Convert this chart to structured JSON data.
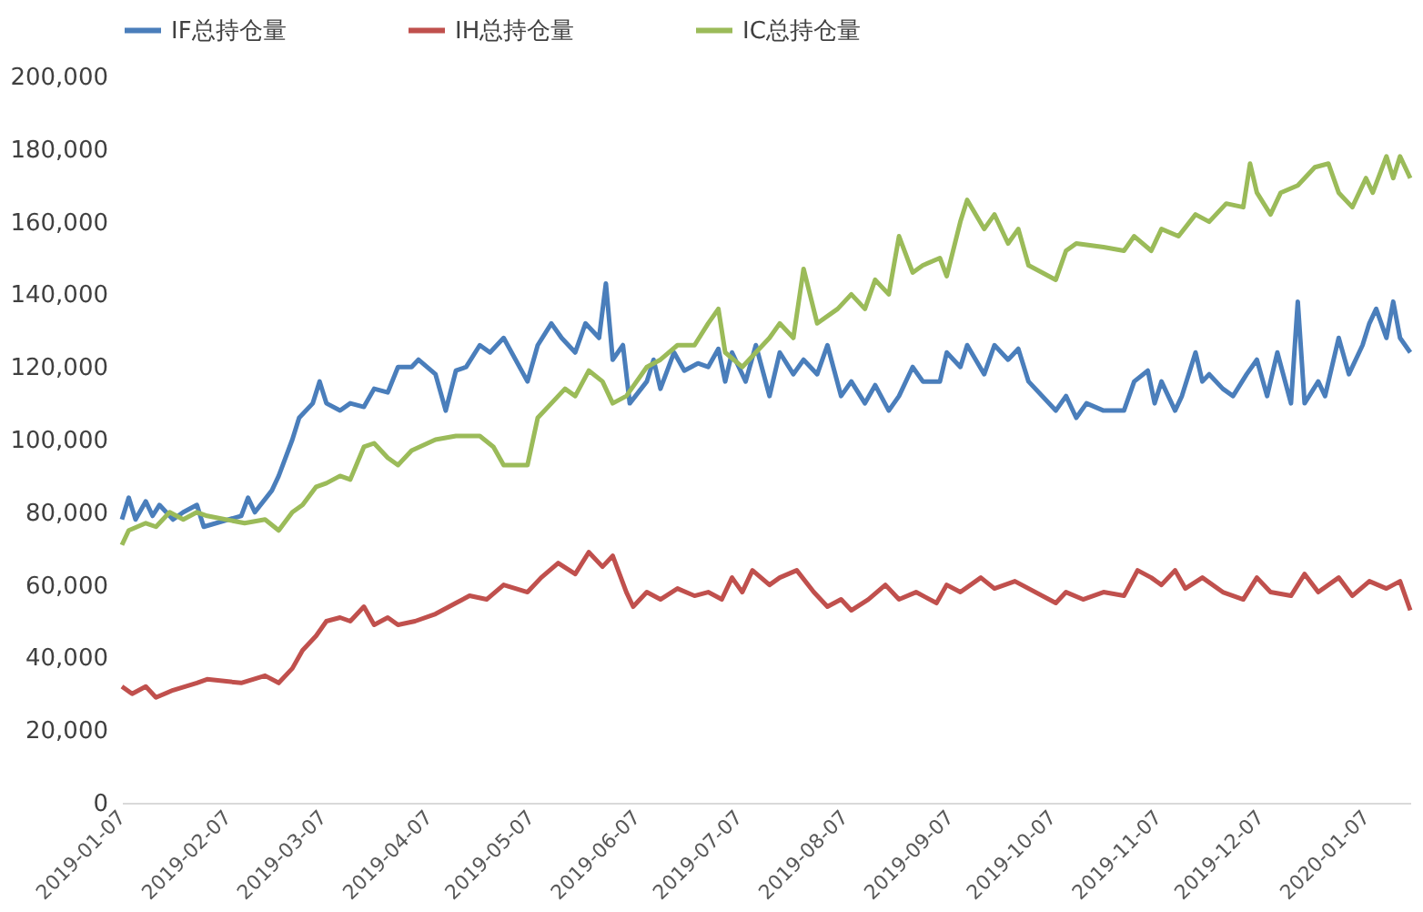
{
  "chart_data": {
    "type": "line",
    "xlim": [
      "2019-01-07",
      "2020-01-20"
    ],
    "xticks": [
      "2019-01-07",
      "2019-02-07",
      "2019-03-07",
      "2019-04-07",
      "2019-05-07",
      "2019-06-07",
      "2019-07-07",
      "2019-08-07",
      "2019-09-07",
      "2019-10-07",
      "2019-11-07",
      "2019-12-07",
      "2020-01-07"
    ],
    "ylim": [
      0,
      200000
    ],
    "yticks": [
      0,
      {
        "value": 20000,
        "label": "20,000"
      },
      {
        "value": 40000,
        "label": "40,000"
      },
      {
        "value": 60000,
        "label": "60,000"
      },
      {
        "value": 80000,
        "label": "80,000"
      },
      {
        "value": 100000,
        "label": "100,000"
      },
      {
        "value": 120000,
        "label": "120,000"
      },
      {
        "value": 140000,
        "label": "140,000"
      },
      {
        "value": 160000,
        "label": "160,000"
      },
      {
        "value": 180000,
        "label": "180,000"
      },
      {
        "value": 200000,
        "label": "200,000"
      }
    ],
    "grid": false,
    "legend": "top",
    "marker": "none",
    "line_style": "solid",
    "series": [
      {
        "name": "IF总持仓量",
        "color": "#4a7ebb",
        "x": [
          "2019-01-07",
          "2019-01-09",
          "2019-01-11",
          "2019-01-14",
          "2019-01-16",
          "2019-01-18",
          "2019-01-22",
          "2019-01-25",
          "2019-01-29",
          "2019-01-31",
          "2019-02-11",
          "2019-02-13",
          "2019-02-15",
          "2019-02-20",
          "2019-02-22",
          "2019-02-26",
          "2019-02-28",
          "2019-03-04",
          "2019-03-06",
          "2019-03-08",
          "2019-03-12",
          "2019-03-15",
          "2019-03-19",
          "2019-03-22",
          "2019-03-26",
          "2019-03-29",
          "2019-04-02",
          "2019-04-04",
          "2019-04-09",
          "2019-04-12",
          "2019-04-15",
          "2019-04-18",
          "2019-04-22",
          "2019-04-25",
          "2019-04-29",
          "2019-05-06",
          "2019-05-09",
          "2019-05-13",
          "2019-05-16",
          "2019-05-20",
          "2019-05-23",
          "2019-05-27",
          "2019-05-29",
          "2019-05-31",
          "2019-06-03",
          "2019-06-05",
          "2019-06-10",
          "2019-06-12",
          "2019-06-14",
          "2019-06-18",
          "2019-06-21",
          "2019-06-25",
          "2019-06-28",
          "2019-07-01",
          "2019-07-03",
          "2019-07-05",
          "2019-07-09",
          "2019-07-12",
          "2019-07-16",
          "2019-07-19",
          "2019-07-23",
          "2019-07-26",
          "2019-07-30",
          "2019-08-02",
          "2019-08-06",
          "2019-08-09",
          "2019-08-13",
          "2019-08-16",
          "2019-08-20",
          "2019-08-23",
          "2019-08-27",
          "2019-08-30",
          "2019-09-04",
          "2019-09-06",
          "2019-09-10",
          "2019-09-12",
          "2019-09-17",
          "2019-09-20",
          "2019-09-24",
          "2019-09-27",
          "2019-09-30",
          "2019-10-08",
          "2019-10-11",
          "2019-10-14",
          "2019-10-17",
          "2019-10-22",
          "2019-10-28",
          "2019-10-31",
          "2019-11-04",
          "2019-11-06",
          "2019-11-08",
          "2019-11-12",
          "2019-11-14",
          "2019-11-18",
          "2019-11-20",
          "2019-11-22",
          "2019-11-26",
          "2019-11-29",
          "2019-12-03",
          "2019-12-06",
          "2019-12-09",
          "2019-12-12",
          "2019-12-16",
          "2019-12-18",
          "2019-12-20",
          "2019-12-24",
          "2019-12-26",
          "2019-12-30",
          "2020-01-02",
          "2020-01-06",
          "2020-01-08",
          "2020-01-10",
          "2020-01-13",
          "2020-01-15",
          "2020-01-17",
          "2020-01-20"
        ],
        "values": [
          78000,
          84000,
          78000,
          83000,
          79000,
          82000,
          78000,
          80000,
          82000,
          76000,
          79000,
          84000,
          80000,
          86000,
          90000,
          100000,
          106000,
          110000,
          116000,
          110000,
          108000,
          110000,
          109000,
          114000,
          113000,
          120000,
          120000,
          122000,
          118000,
          108000,
          119000,
          120000,
          126000,
          124000,
          128000,
          116000,
          126000,
          132000,
          128000,
          124000,
          132000,
          128000,
          143000,
          122000,
          126000,
          110000,
          116000,
          122000,
          114000,
          124000,
          119000,
          121000,
          120000,
          125000,
          116000,
          124000,
          116000,
          126000,
          112000,
          124000,
          118000,
          122000,
          118000,
          126000,
          112000,
          116000,
          110000,
          115000,
          108000,
          112000,
          120000,
          116000,
          116000,
          124000,
          120000,
          126000,
          118000,
          126000,
          122000,
          125000,
          116000,
          108000,
          112000,
          106000,
          110000,
          108000,
          108000,
          116000,
          119000,
          110000,
          116000,
          108000,
          112000,
          124000,
          116000,
          118000,
          114000,
          112000,
          118000,
          122000,
          112000,
          124000,
          110000,
          138000,
          110000,
          116000,
          112000,
          128000,
          118000,
          126000,
          132000,
          136000,
          128000,
          138000,
          128000,
          124000
        ]
      },
      {
        "name": "IH总持仓量",
        "color": "#c0504d",
        "x": [
          "2019-01-07",
          "2019-01-10",
          "2019-01-14",
          "2019-01-17",
          "2019-01-22",
          "2019-01-29",
          "2019-02-01",
          "2019-02-11",
          "2019-02-18",
          "2019-02-22",
          "2019-02-26",
          "2019-03-01",
          "2019-03-05",
          "2019-03-08",
          "2019-03-12",
          "2019-03-15",
          "2019-03-19",
          "2019-03-22",
          "2019-03-26",
          "2019-03-29",
          "2019-04-03",
          "2019-04-09",
          "2019-04-15",
          "2019-04-19",
          "2019-04-24",
          "2019-04-29",
          "2019-05-06",
          "2019-05-10",
          "2019-05-15",
          "2019-05-20",
          "2019-05-24",
          "2019-05-28",
          "2019-05-31",
          "2019-06-04",
          "2019-06-06",
          "2019-06-10",
          "2019-06-14",
          "2019-06-19",
          "2019-06-24",
          "2019-06-28",
          "2019-07-02",
          "2019-07-05",
          "2019-07-08",
          "2019-07-11",
          "2019-07-16",
          "2019-07-19",
          "2019-07-24",
          "2019-07-29",
          "2019-08-02",
          "2019-08-06",
          "2019-08-09",
          "2019-08-14",
          "2019-08-19",
          "2019-08-23",
          "2019-08-28",
          "2019-09-03",
          "2019-09-06",
          "2019-09-10",
          "2019-09-16",
          "2019-09-20",
          "2019-09-26",
          "2019-10-08",
          "2019-10-11",
          "2019-10-16",
          "2019-10-22",
          "2019-10-28",
          "2019-11-01",
          "2019-11-05",
          "2019-11-08",
          "2019-11-12",
          "2019-11-15",
          "2019-11-20",
          "2019-11-26",
          "2019-12-02",
          "2019-12-06",
          "2019-12-10",
          "2019-12-16",
          "2019-12-20",
          "2019-12-24",
          "2019-12-30",
          "2020-01-03",
          "2020-01-08",
          "2020-01-13",
          "2020-01-17",
          "2020-01-20"
        ],
        "values": [
          32000,
          30000,
          32000,
          29000,
          31000,
          33000,
          34000,
          33000,
          35000,
          33000,
          37000,
          42000,
          46000,
          50000,
          51000,
          50000,
          54000,
          49000,
          51000,
          49000,
          50000,
          52000,
          55000,
          57000,
          56000,
          60000,
          58000,
          62000,
          66000,
          63000,
          69000,
          65000,
          68000,
          58000,
          54000,
          58000,
          56000,
          59000,
          57000,
          58000,
          56000,
          62000,
          58000,
          64000,
          60000,
          62000,
          64000,
          58000,
          54000,
          56000,
          53000,
          56000,
          60000,
          56000,
          58000,
          55000,
          60000,
          58000,
          62000,
          59000,
          61000,
          55000,
          58000,
          56000,
          58000,
          57000,
          64000,
          62000,
          60000,
          64000,
          59000,
          62000,
          58000,
          56000,
          62000,
          58000,
          57000,
          63000,
          58000,
          62000,
          57000,
          61000,
          59000,
          61000,
          53000
        ]
      },
      {
        "name": "IC总持仓量",
        "color": "#9bbb59",
        "x": [
          "2019-01-07",
          "2019-01-09",
          "2019-01-14",
          "2019-01-17",
          "2019-01-21",
          "2019-01-25",
          "2019-01-29",
          "2019-02-01",
          "2019-02-12",
          "2019-02-18",
          "2019-02-22",
          "2019-02-26",
          "2019-03-01",
          "2019-03-05",
          "2019-03-08",
          "2019-03-12",
          "2019-03-15",
          "2019-03-19",
          "2019-03-22",
          "2019-03-26",
          "2019-03-29",
          "2019-04-02",
          "2019-04-09",
          "2019-04-15",
          "2019-04-22",
          "2019-04-26",
          "2019-04-29",
          "2019-05-06",
          "2019-05-09",
          "2019-05-13",
          "2019-05-17",
          "2019-05-20",
          "2019-05-24",
          "2019-05-28",
          "2019-05-31",
          "2019-06-04",
          "2019-06-10",
          "2019-06-14",
          "2019-06-19",
          "2019-06-24",
          "2019-06-28",
          "2019-07-01",
          "2019-07-03",
          "2019-07-08",
          "2019-07-12",
          "2019-07-16",
          "2019-07-19",
          "2019-07-23",
          "2019-07-26",
          "2019-07-30",
          "2019-08-05",
          "2019-08-09",
          "2019-08-13",
          "2019-08-16",
          "2019-08-20",
          "2019-08-23",
          "2019-08-27",
          "2019-08-30",
          "2019-09-04",
          "2019-09-06",
          "2019-09-10",
          "2019-09-12",
          "2019-09-17",
          "2019-09-20",
          "2019-09-24",
          "2019-09-27",
          "2019-09-30",
          "2019-10-08",
          "2019-10-11",
          "2019-10-14",
          "2019-10-22",
          "2019-10-28",
          "2019-10-31",
          "2019-11-05",
          "2019-11-08",
          "2019-11-13",
          "2019-11-18",
          "2019-11-22",
          "2019-11-27",
          "2019-12-02",
          "2019-12-04",
          "2019-12-06",
          "2019-12-10",
          "2019-12-13",
          "2019-12-18",
          "2019-12-23",
          "2019-12-27",
          "2019-12-30",
          "2020-01-03",
          "2020-01-07",
          "2020-01-09",
          "2020-01-13",
          "2020-01-15",
          "2020-01-17",
          "2020-01-20"
        ],
        "values": [
          71000,
          75000,
          77000,
          76000,
          80000,
          78000,
          80000,
          79000,
          77000,
          78000,
          75000,
          80000,
          82000,
          87000,
          88000,
          90000,
          89000,
          98000,
          99000,
          95000,
          93000,
          97000,
          100000,
          101000,
          101000,
          98000,
          93000,
          93000,
          106000,
          110000,
          114000,
          112000,
          119000,
          116000,
          110000,
          112000,
          120000,
          122000,
          126000,
          126000,
          132000,
          136000,
          124000,
          120000,
          124000,
          128000,
          132000,
          128000,
          147000,
          132000,
          136000,
          140000,
          136000,
          144000,
          140000,
          156000,
          146000,
          148000,
          150000,
          145000,
          160000,
          166000,
          158000,
          162000,
          154000,
          158000,
          148000,
          144000,
          152000,
          154000,
          153000,
          152000,
          156000,
          152000,
          158000,
          156000,
          162000,
          160000,
          165000,
          164000,
          176000,
          168000,
          162000,
          168000,
          170000,
          175000,
          176000,
          168000,
          164000,
          172000,
          168000,
          178000,
          172000,
          178000,
          172000
        ]
      }
    ]
  }
}
